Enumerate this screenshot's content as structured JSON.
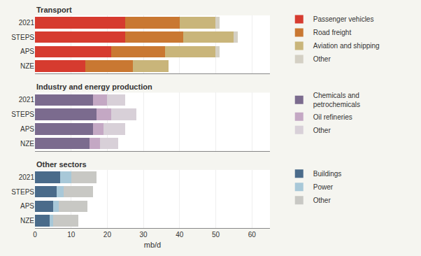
{
  "chart_data": [
    {
      "type": "bar",
      "orientation": "horizontal",
      "stacked": true,
      "grid": true,
      "tick_labels": "y",
      "title": "Transport",
      "categories": [
        "2021",
        "STEPS",
        "APS",
        "NZE"
      ],
      "series": [
        {
          "name": "Passenger vehicles",
          "color": "#d63b2f",
          "values": [
            25,
            25,
            21,
            14
          ]
        },
        {
          "name": "Road freight",
          "color": "#c97832",
          "values": [
            15,
            16,
            15,
            13
          ]
        },
        {
          "name": "Aviation and shipping",
          "color": "#c9b57a",
          "values": [
            10,
            14,
            14,
            10
          ]
        },
        {
          "name": "Other",
          "color": "#d4d0c4",
          "values": [
            1,
            1,
            1,
            0
          ]
        }
      ],
      "xlim": [
        0,
        65
      ],
      "xticks": [
        0,
        10,
        20,
        30,
        40,
        50,
        60
      ]
    },
    {
      "type": "bar",
      "orientation": "horizontal",
      "stacked": true,
      "grid": true,
      "tick_labels": "y",
      "title": "Industry and energy production",
      "categories": [
        "2021",
        "STEPS",
        "APS",
        "NZE"
      ],
      "series": [
        {
          "name": "Chemicals and\npetrochemicals",
          "color": "#7b6b8e",
          "values": [
            16,
            17,
            16,
            15
          ]
        },
        {
          "name": "Oil refineries",
          "color": "#c4a8c4",
          "values": [
            4,
            4,
            3,
            3
          ]
        },
        {
          "name": "Other",
          "color": "#d8d0d8",
          "values": [
            5,
            7,
            6,
            5
          ]
        }
      ],
      "xlim": [
        0,
        65
      ],
      "xticks": [
        0,
        10,
        20,
        30,
        40,
        50,
        60
      ]
    },
    {
      "type": "bar",
      "orientation": "horizontal",
      "stacked": true,
      "grid": true,
      "tick_labels": true,
      "title": "Other sectors",
      "xlabel": "mb/d",
      "categories": [
        "2021",
        "STEPS",
        "APS",
        "NZE"
      ],
      "series": [
        {
          "name": "Buildings",
          "color": "#4a6b8a",
          "values": [
            7,
            6,
            5,
            4
          ]
        },
        {
          "name": "Power",
          "color": "#a8c8d8",
          "values": [
            3,
            2,
            1.5,
            1
          ]
        },
        {
          "name": "Other",
          "color": "#c8c8c4",
          "values": [
            7,
            8,
            8,
            7
          ]
        }
      ],
      "xlim": [
        0,
        65
      ],
      "xticks": [
        0,
        10,
        20,
        30,
        40,
        50,
        60
      ]
    }
  ]
}
